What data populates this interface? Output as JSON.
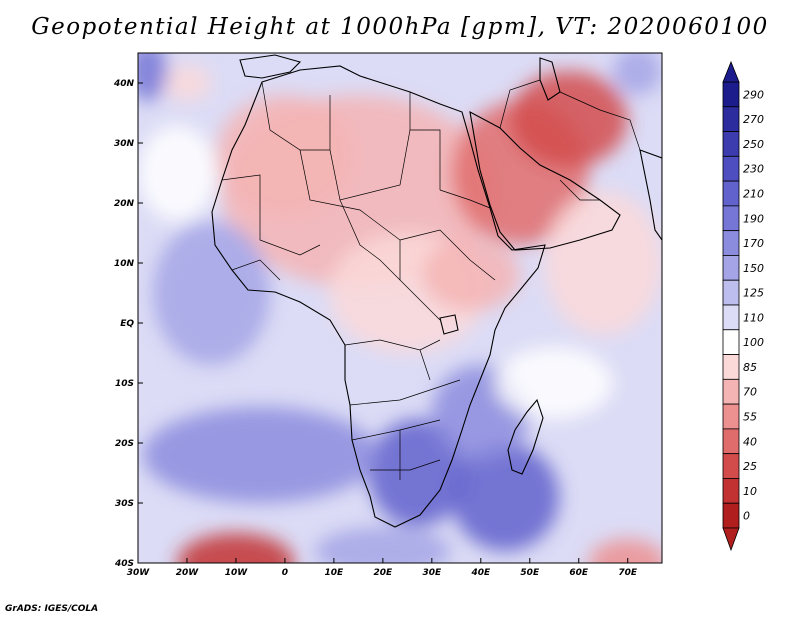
{
  "title": "Geopotential Height at 1000hPa [gpm], VT: 2020060100",
  "footer": "GrADS: IGES/COLA",
  "colors": {
    "frame": "#000000",
    "background": "#ffffff"
  },
  "map": {
    "extent": {
      "lon_min": -30,
      "lon_max": 77,
      "lat_min": -40,
      "lat_max": 45
    },
    "region": "Africa and Middle East",
    "x_ticks": [
      {
        "lon": -30,
        "label": "30W"
      },
      {
        "lon": -20,
        "label": "20W"
      },
      {
        "lon": -10,
        "label": "10W"
      },
      {
        "lon": 0,
        "label": "0"
      },
      {
        "lon": 10,
        "label": "10E"
      },
      {
        "lon": 20,
        "label": "20E"
      },
      {
        "lon": 30,
        "label": "30E"
      },
      {
        "lon": 40,
        "label": "40E"
      },
      {
        "lon": 50,
        "label": "50E"
      },
      {
        "lon": 60,
        "label": "60E"
      },
      {
        "lon": 70,
        "label": "70E"
      }
    ],
    "y_ticks": [
      {
        "lat": 40,
        "label": "40N"
      },
      {
        "lat": 30,
        "label": "30N"
      },
      {
        "lat": 20,
        "label": "20N"
      },
      {
        "lat": 10,
        "label": "10N"
      },
      {
        "lat": 0,
        "label": "EQ"
      },
      {
        "lat": -10,
        "label": "10S"
      },
      {
        "lat": -20,
        "label": "20S"
      },
      {
        "lat": -30,
        "label": "30S"
      },
      {
        "lat": -40,
        "label": "40S"
      }
    ]
  },
  "colorbar": {
    "levels": [
      "290",
      "270",
      "250",
      "230",
      "210",
      "190",
      "170",
      "150",
      "125",
      "110",
      "100",
      "85",
      "70",
      "55",
      "40",
      "25",
      "10",
      "0"
    ],
    "colors": [
      "#1c1c8c",
      "#2c2c9e",
      "#3c3caf",
      "#4e4ec0",
      "#6262cc",
      "#7676d6",
      "#8c8cde",
      "#a4a4e6",
      "#bebeee",
      "#dcdcf6",
      "#ffffff",
      "#fbd9d9",
      "#f4b4b4",
      "#ec9090",
      "#e06c6c",
      "#d24c4c",
      "#c23232",
      "#b01e1e"
    ]
  },
  "field": {
    "description": "Gridded geopotential height field, gpm",
    "blobs": [
      {
        "lon": 15,
        "lat": 22,
        "value": 70,
        "rx": 28,
        "ry": 16
      },
      {
        "lon": 48,
        "lat": 25,
        "value": 40,
        "rx": 14,
        "ry": 12
      },
      {
        "lon": 58,
        "lat": 34,
        "value": 25,
        "rx": 12,
        "ry": 8
      },
      {
        "lon": 0,
        "lat": 28,
        "value": 70,
        "rx": 14,
        "ry": 10
      },
      {
        "lon": 25,
        "lat": 5,
        "value": 85,
        "rx": 16,
        "ry": 10
      },
      {
        "lon": 38,
        "lat": 8,
        "value": 70,
        "rx": 10,
        "ry": 6
      },
      {
        "lon": 65,
        "lat": 10,
        "value": 85,
        "rx": 12,
        "ry": 12
      },
      {
        "lon": -22,
        "lat": 25,
        "value": 100,
        "rx": 8,
        "ry": 8
      },
      {
        "lon": -20,
        "lat": 40,
        "value": 85,
        "rx": 5,
        "ry": 3
      },
      {
        "lon": 27,
        "lat": -25,
        "value": 210,
        "rx": 10,
        "ry": 9
      },
      {
        "lon": 45,
        "lat": -29,
        "value": 210,
        "rx": 11,
        "ry": 9
      },
      {
        "lon": 40,
        "lat": -15,
        "value": 170,
        "rx": 10,
        "ry": 8
      },
      {
        "lon": -5,
        "lat": -22,
        "value": 170,
        "rx": 24,
        "ry": 8
      },
      {
        "lon": -15,
        "lat": 5,
        "value": 150,
        "rx": 12,
        "ry": 12
      },
      {
        "lon": -10,
        "lat": -40,
        "value": 10,
        "rx": 12,
        "ry": 5
      },
      {
        "lon": 70,
        "lat": -40,
        "value": 55,
        "rx": 8,
        "ry": 4
      },
      {
        "lon": 20,
        "lat": -38,
        "value": 150,
        "rx": 14,
        "ry": 4
      },
      {
        "lon": 72,
        "lat": 42,
        "value": 150,
        "rx": 5,
        "ry": 4
      },
      {
        "lon": -28,
        "lat": 42,
        "value": 190,
        "rx": 4,
        "ry": 5
      },
      {
        "lon": 55,
        "lat": -10,
        "value": 100,
        "rx": 12,
        "ry": 6
      }
    ]
  }
}
